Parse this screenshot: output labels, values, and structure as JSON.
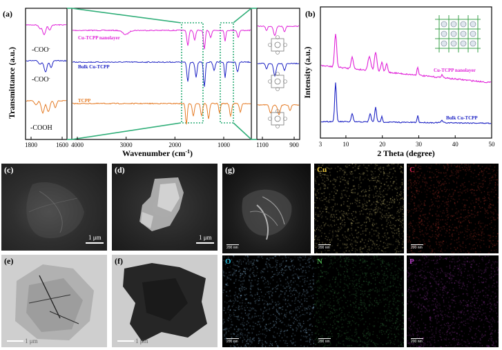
{
  "panel_a": {
    "label": "(a)",
    "ylabel": "Transmittance (a.u.)",
    "xlabel": "Wavenumber (cm",
    "xlabel_sup": "-1",
    "xlabel_end": ")",
    "left_ticks": [
      "1800",
      "1600"
    ],
    "main_ticks": [
      "4000",
      "3000",
      "2000",
      "1000"
    ],
    "right_ticks": [
      "1100",
      "900"
    ],
    "series": [
      {
        "name": "Cu-TCPP nanolayer",
        "color": "#e01fd8",
        "group": "-COO"
      },
      {
        "name": "Bulk Cu-TCPP",
        "color": "#1c22c4",
        "group": "-COO"
      },
      {
        "name": "TCPP",
        "color": "#e57a23",
        "group": "-COOH"
      }
    ],
    "group_sup": "-"
  },
  "panel_b": {
    "label": "(b)",
    "ylabel": "Intensity (a.u.)",
    "xlabel": "2 Theta (degree)",
    "ticks": [
      "3",
      "10",
      "20",
      "30",
      "40",
      "50"
    ],
    "series": [
      {
        "name": "Cu-TCPP nanolayer",
        "color": "#e01fd8"
      },
      {
        "name": "Bulk Cu-TCPP",
        "color": "#1c22c4"
      }
    ]
  },
  "em_panels": [
    {
      "label": "(c)",
      "scale": "1 μm"
    },
    {
      "label": "(d)",
      "scale": "1 μm"
    },
    {
      "label": "(e)",
      "scale": "1 μm"
    },
    {
      "label": "(f)",
      "scale": "1 μm"
    }
  ],
  "panel_g": {
    "label": "(g)",
    "scale": "200 nm",
    "maps": [
      {
        "element": "Cu",
        "color": "#e6c23a",
        "dot": "#f0e08a"
      },
      {
        "element": "C",
        "color": "#d2214e",
        "dot": "#c43a2e"
      },
      {
        "element": "O",
        "color": "#27b9d8",
        "dot": "#9fd6ff"
      },
      {
        "element": "N",
        "color": "#4caf50",
        "dot": "#3c8f4a"
      },
      {
        "element": "P",
        "color": "#b33fc4",
        "dot": "#a13bb0"
      }
    ]
  }
}
